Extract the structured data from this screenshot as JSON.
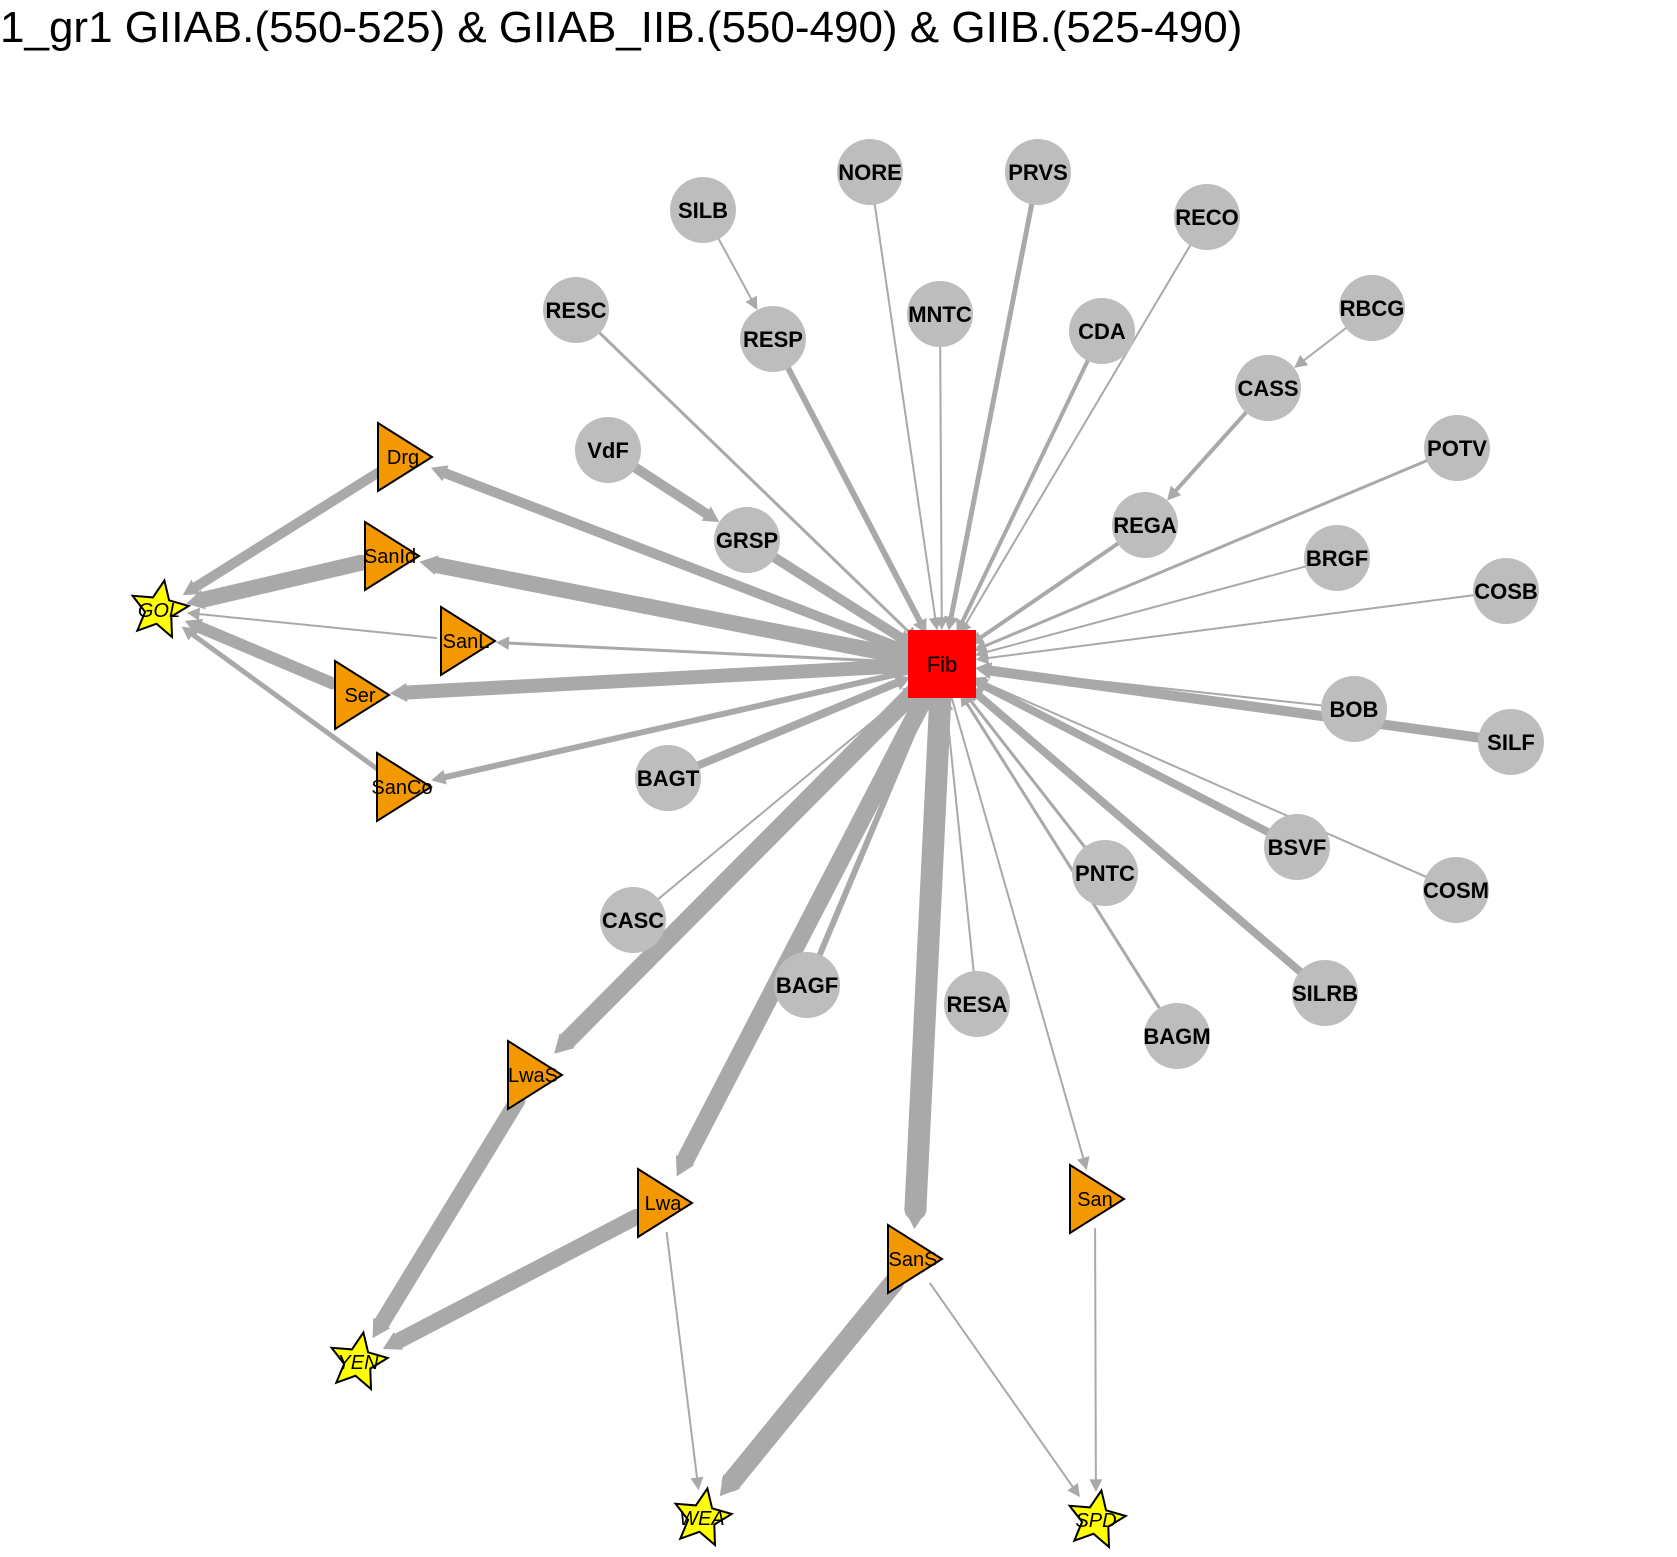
{
  "title": "1_gr1 GIIAB.(550-525) & GIIAB_IIB.(550-490) & GIIB.(525-490)",
  "colors": {
    "edge": "#a9a9a9",
    "circle_node": "#bdbdbd",
    "triangle_node": "#f39800",
    "star_node": "#ffff00",
    "hub_node": "#ff0000",
    "outline": "#000000"
  },
  "nodes": [
    {
      "id": "Fib",
      "label": "Fib",
      "shape": "square"
    },
    {
      "id": "NORE",
      "label": "NORE",
      "shape": "circle"
    },
    {
      "id": "PRVS",
      "label": "PRVS",
      "shape": "circle"
    },
    {
      "id": "SILB",
      "label": "SILB",
      "shape": "circle"
    },
    {
      "id": "RECO",
      "label": "RECO",
      "shape": "circle"
    },
    {
      "id": "RESC",
      "label": "RESC",
      "shape": "circle"
    },
    {
      "id": "MNTC",
      "label": "MNTC",
      "shape": "circle"
    },
    {
      "id": "RESP",
      "label": "RESP",
      "shape": "circle"
    },
    {
      "id": "CDA",
      "label": "CDA",
      "shape": "circle"
    },
    {
      "id": "RBCG",
      "label": "RBCG",
      "shape": "circle"
    },
    {
      "id": "CASS",
      "label": "CASS",
      "shape": "circle"
    },
    {
      "id": "POTV",
      "label": "POTV",
      "shape": "circle"
    },
    {
      "id": "VdF",
      "label": "VdF",
      "shape": "circle"
    },
    {
      "id": "REGA",
      "label": "REGA",
      "shape": "circle"
    },
    {
      "id": "GRSP",
      "label": "GRSP",
      "shape": "circle"
    },
    {
      "id": "BRGF",
      "label": "BRGF",
      "shape": "circle"
    },
    {
      "id": "COSB",
      "label": "COSB",
      "shape": "circle"
    },
    {
      "id": "BOB",
      "label": "BOB",
      "shape": "circle"
    },
    {
      "id": "SILF",
      "label": "SILF",
      "shape": "circle"
    },
    {
      "id": "BAGT",
      "label": "BAGT",
      "shape": "circle"
    },
    {
      "id": "BSVF",
      "label": "BSVF",
      "shape": "circle"
    },
    {
      "id": "COSM",
      "label": "COSM",
      "shape": "circle"
    },
    {
      "id": "PNTC",
      "label": "PNTC",
      "shape": "circle"
    },
    {
      "id": "CASC",
      "label": "CASC",
      "shape": "circle"
    },
    {
      "id": "SILRB",
      "label": "SILRB",
      "shape": "circle"
    },
    {
      "id": "BAGF",
      "label": "BAGF",
      "shape": "circle"
    },
    {
      "id": "RESA",
      "label": "RESA",
      "shape": "circle"
    },
    {
      "id": "BAGM",
      "label": "BAGM",
      "shape": "circle"
    },
    {
      "id": "Drg",
      "label": "Drg",
      "shape": "triangle"
    },
    {
      "id": "SanId",
      "label": "SanId",
      "shape": "triangle"
    },
    {
      "id": "SanL",
      "label": "SanL",
      "shape": "triangle"
    },
    {
      "id": "Ser",
      "label": "Ser",
      "shape": "triangle"
    },
    {
      "id": "SanCo",
      "label": "SanCo",
      "shape": "triangle"
    },
    {
      "id": "LwaS",
      "label": "LwaS",
      "shape": "triangle"
    },
    {
      "id": "Lwa",
      "label": "Lwa",
      "shape": "triangle"
    },
    {
      "id": "SanS",
      "label": "SanS",
      "shape": "triangle"
    },
    {
      "id": "San",
      "label": "San",
      "shape": "triangle"
    },
    {
      "id": "GOL",
      "label": "GOL",
      "shape": "star"
    },
    {
      "id": "YEN",
      "label": "YEN",
      "shape": "star"
    },
    {
      "id": "WEA",
      "label": "WEA",
      "shape": "star"
    },
    {
      "id": "SPD",
      "label": "SPD",
      "shape": "star"
    }
  ],
  "edges": [
    {
      "from": "NORE",
      "to": "Fib",
      "weight": 2
    },
    {
      "from": "PRVS",
      "to": "Fib",
      "weight": 5
    },
    {
      "from": "SILB",
      "to": "RESP",
      "weight": 2
    },
    {
      "from": "RESP",
      "to": "Fib",
      "weight": 6
    },
    {
      "from": "RECO",
      "to": "Fib",
      "weight": 2
    },
    {
      "from": "RESC",
      "to": "Fib",
      "weight": 3
    },
    {
      "from": "MNTC",
      "to": "Fib",
      "weight": 2
    },
    {
      "from": "CDA",
      "to": "Fib",
      "weight": 4
    },
    {
      "from": "RBCG",
      "to": "CASS",
      "weight": 2
    },
    {
      "from": "CASS",
      "to": "REGA",
      "weight": 4
    },
    {
      "from": "REGA",
      "to": "Fib",
      "weight": 4
    },
    {
      "from": "POTV",
      "to": "Fib",
      "weight": 3
    },
    {
      "from": "VdF",
      "to": "GRSP",
      "weight": 10
    },
    {
      "from": "GRSP",
      "to": "Fib",
      "weight": 10
    },
    {
      "from": "BRGF",
      "to": "Fib",
      "weight": 2
    },
    {
      "from": "COSB",
      "to": "Fib",
      "weight": 2
    },
    {
      "from": "BOB",
      "to": "Fib",
      "weight": 2
    },
    {
      "from": "SILF",
      "to": "Fib",
      "weight": 10
    },
    {
      "from": "BSVF",
      "to": "Fib",
      "weight": 8
    },
    {
      "from": "COSM",
      "to": "Fib",
      "weight": 2
    },
    {
      "from": "SILRB",
      "to": "Fib",
      "weight": 8
    },
    {
      "from": "PNTC",
      "to": "Fib",
      "weight": 3
    },
    {
      "from": "BAGM",
      "to": "Fib",
      "weight": 3
    },
    {
      "from": "RESA",
      "to": "Fib",
      "weight": 2
    },
    {
      "from": "BAGF",
      "to": "Fib",
      "weight": 6
    },
    {
      "from": "CASC",
      "to": "Fib",
      "weight": 2
    },
    {
      "from": "BAGT",
      "to": "Fib",
      "weight": 8
    },
    {
      "from": "Fib",
      "to": "Drg",
      "weight": 10
    },
    {
      "from": "Fib",
      "to": "SanId",
      "weight": 16
    },
    {
      "from": "Fib",
      "to": "SanL",
      "weight": 3
    },
    {
      "from": "Fib",
      "to": "Ser",
      "weight": 14
    },
    {
      "from": "Fib",
      "to": "SanCo",
      "weight": 6
    },
    {
      "from": "Fib",
      "to": "LwaS",
      "weight": 18
    },
    {
      "from": "Fib",
      "to": "Lwa",
      "weight": 18
    },
    {
      "from": "Fib",
      "to": "SanS",
      "weight": 22
    },
    {
      "from": "Fib",
      "to": "San",
      "weight": 2
    },
    {
      "from": "Drg",
      "to": "GOL",
      "weight": 10
    },
    {
      "from": "SanId",
      "to": "GOL",
      "weight": 16
    },
    {
      "from": "SanL",
      "to": "GOL",
      "weight": 2
    },
    {
      "from": "Ser",
      "to": "GOL",
      "weight": 12
    },
    {
      "from": "SanCo",
      "to": "GOL",
      "weight": 5
    },
    {
      "from": "LwaS",
      "to": "YEN",
      "weight": 16
    },
    {
      "from": "Lwa",
      "to": "YEN",
      "weight": 16
    },
    {
      "from": "Lwa",
      "to": "WEA",
      "weight": 2
    },
    {
      "from": "SanS",
      "to": "WEA",
      "weight": 20
    },
    {
      "from": "SanS",
      "to": "SPD",
      "weight": 2
    },
    {
      "from": "San",
      "to": "SPD",
      "weight": 2
    }
  ]
}
